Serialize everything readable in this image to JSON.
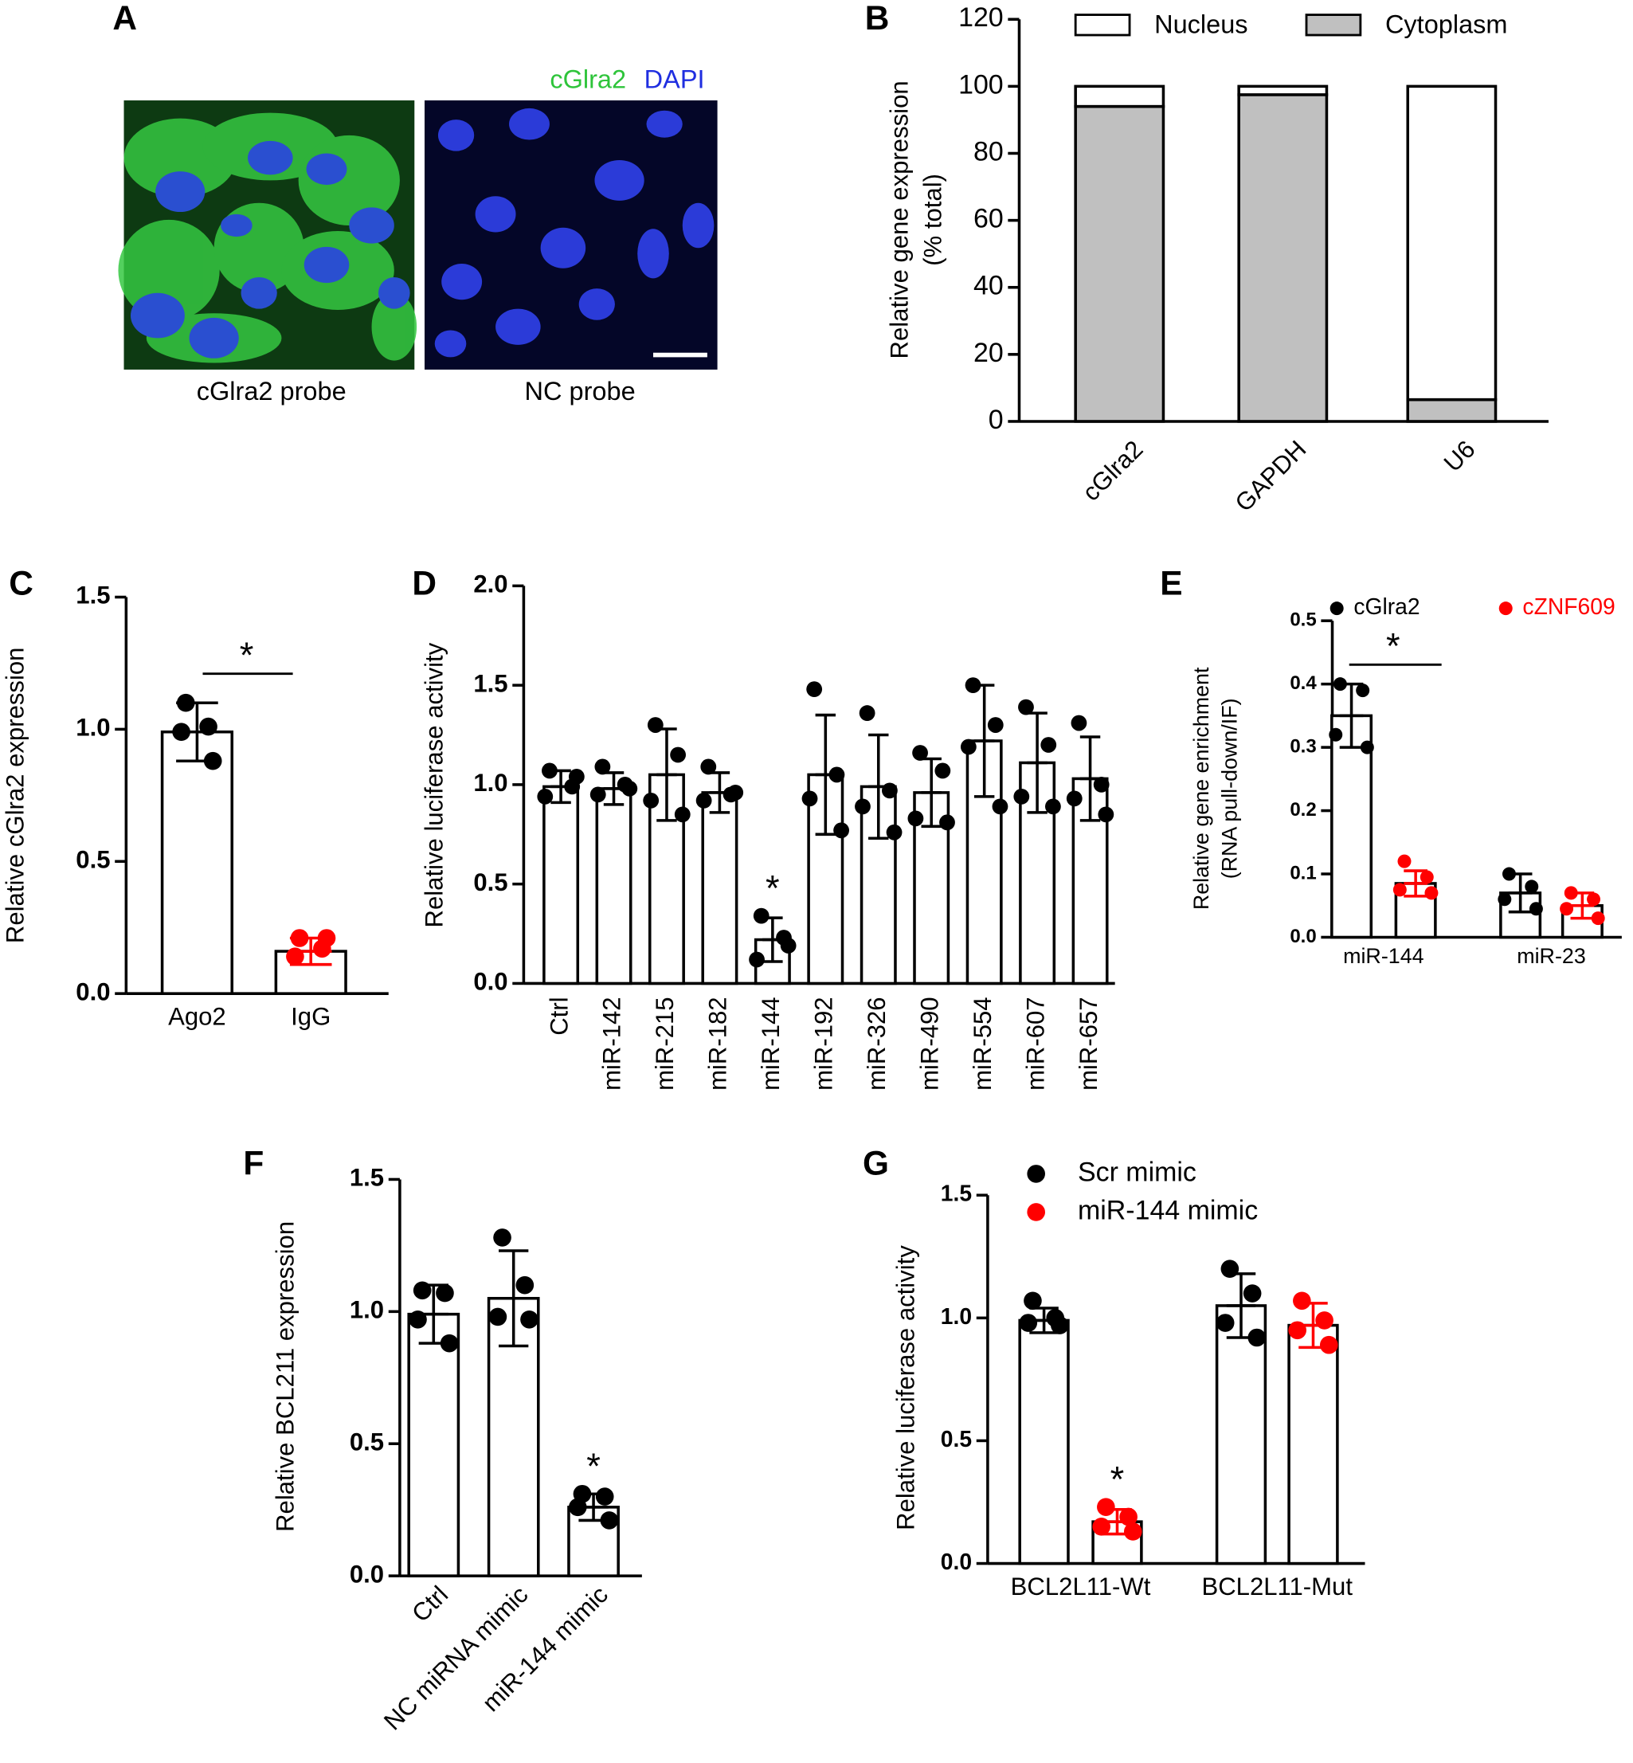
{
  "chart_data": [
    {
      "type": "image",
      "panel_label": "A",
      "legend": [
        "cGlra2",
        "DAPI"
      ],
      "captions": [
        "cGlra2 probe",
        "NC probe"
      ]
    },
    {
      "type": "bar",
      "stacked": true,
      "panel_label": "B",
      "y_label": [
        "Relative gene expression",
        "(% total)"
      ],
      "categories": [
        "cGlra2",
        "GAPDH",
        "U6"
      ],
      "series": [
        {
          "name": "Nucleus",
          "color": "#ffffff",
          "values": [
            6,
            2.5,
            93.5
          ]
        },
        {
          "name": "Cytoplasm",
          "color": "#c0c0c0",
          "values": [
            94,
            97.5,
            6.5
          ]
        }
      ],
      "ylim": [
        0,
        120
      ],
      "yticks": [
        0,
        20,
        40,
        60,
        80,
        100,
        120
      ]
    },
    {
      "type": "dot_bar",
      "panel_label": "C",
      "y_label": [
        "Relative cGlra2 expression"
      ],
      "annotation": "*",
      "categories": [
        "Ago2",
        "IgG"
      ],
      "series": [
        {
          "color": [
            "#000000",
            "#ff0000"
          ],
          "values": [
            0.99,
            0.16
          ],
          "errors": [
            0.11,
            0.05
          ],
          "points": [
            [
              1.1,
              1.01,
              0.99,
              0.88
            ],
            [
              0.21,
              0.17,
              0.14,
              0.21
            ]
          ]
        }
      ],
      "ylim": [
        0,
        1.5
      ],
      "yticks": [
        {
          "value": 0,
          "label": "0.0"
        },
        {
          "value": 0.5,
          "label": "0.5"
        },
        {
          "value": 1,
          "label": "1.0"
        },
        {
          "value": 1.5,
          "label": "1.5"
        }
      ]
    },
    {
      "type": "dot_bar",
      "panel_label": "D",
      "y_label": [
        "Relative luciferase activity"
      ],
      "annotation": "*",
      "categories": [
        "Ctrl",
        "miR-142",
        "miR-215",
        "miR-182",
        "miR-144",
        "miR-192",
        "miR-326",
        "miR-490",
        "miR-554",
        "miR-607",
        "miR-657"
      ],
      "series": [
        {
          "color": "#000000",
          "values": [
            0.99,
            0.98,
            1.05,
            0.96,
            0.22,
            1.05,
            0.99,
            0.96,
            1.22,
            1.11,
            1.03
          ],
          "errors": [
            0.08,
            0.08,
            0.23,
            0.1,
            0.11,
            0.3,
            0.26,
            0.17,
            0.28,
            0.25,
            0.21
          ],
          "points": [
            [
              1.07,
              0.99,
              0.94,
              1.04
            ],
            [
              1.09,
              1.0,
              0.95,
              0.98
            ],
            [
              1.3,
              1.15,
              0.92,
              0.85
            ],
            [
              1.09,
              0.95,
              0.92,
              0.96
            ],
            [
              0.34,
              0.23,
              0.12,
              0.19
            ],
            [
              1.48,
              1.05,
              0.93,
              0.77
            ],
            [
              1.36,
              0.97,
              0.89,
              0.76
            ],
            [
              1.16,
              1.07,
              0.83,
              0.81
            ],
            [
              1.5,
              1.3,
              1.19,
              0.89
            ],
            [
              1.39,
              1.2,
              0.94,
              0.89
            ],
            [
              1.31,
              1.0,
              0.93,
              0.85
            ]
          ]
        }
      ],
      "ylim": [
        0,
        2
      ],
      "yticks": [
        {
          "value": 0,
          "label": "0.0"
        },
        {
          "value": 0.5,
          "label": "0.5"
        },
        {
          "value": 1,
          "label": "1.0"
        },
        {
          "value": 1.5,
          "label": "1.5"
        },
        {
          "value": 2,
          "label": "2.0"
        }
      ]
    },
    {
      "type": "dot_bar",
      "panel_label": "E",
      "y_label": [
        "Relative gene enrichment",
        "(RNA pull-down/IF)"
      ],
      "annotation": "*",
      "categories": [
        "miR-144",
        "miR-23"
      ],
      "series": [
        {
          "name": "cGlra2",
          "color": "#000000",
          "values": [
            0.35,
            0.07
          ],
          "errors": [
            0.05,
            0.03
          ],
          "points": [
            [
              0.4,
              0.39,
              0.32,
              0.3
            ],
            [
              0.1,
              0.08,
              0.06,
              0.045
            ]
          ]
        },
        {
          "name": "cZNF609",
          "color": "#ff0000",
          "values": [
            0.085,
            0.05
          ],
          "errors": [
            0.02,
            0.02
          ],
          "points": [
            [
              0.12,
              0.095,
              0.075,
              0.07
            ],
            [
              0.07,
              0.06,
              0.045,
              0.03
            ]
          ]
        }
      ],
      "ylim": [
        0,
        0.5
      ],
      "yticks": [
        {
          "value": 0,
          "label": "0.0"
        },
        0.1,
        0.2,
        0.3,
        0.4,
        0.5
      ]
    },
    {
      "type": "dot_bar",
      "panel_label": "F",
      "y_label": [
        "Relative BCL211 expression"
      ],
      "annotation": "*",
      "categories": [
        "Ctrl",
        "NC miRNA mimic",
        "miR-144 mimic"
      ],
      "series": [
        {
          "color": "#000000",
          "values": [
            0.99,
            1.05,
            0.26
          ],
          "errors": [
            0.11,
            0.18,
            0.05
          ],
          "points": [
            [
              1.08,
              1.07,
              0.97,
              0.88
            ],
            [
              1.28,
              1.1,
              0.98,
              0.97
            ],
            [
              0.31,
              0.3,
              0.26,
              0.21
            ]
          ]
        }
      ],
      "ylim": [
        0,
        1.5
      ],
      "yticks": [
        {
          "value": 0,
          "label": "0.0"
        },
        {
          "value": 0.5,
          "label": "0.5"
        },
        {
          "value": 1,
          "label": "1.0"
        },
        {
          "value": 1.5,
          "label": "1.5"
        }
      ]
    },
    {
      "type": "dot_bar",
      "panel_label": "G",
      "y_label": [
        "Relative luciferase activity"
      ],
      "annotation": "*",
      "categories": [
        "BCL2L11-Wt",
        "BCL2L11-Mut"
      ],
      "series": [
        {
          "name": "Scr mimic",
          "color": "#000000",
          "values": [
            0.99,
            1.05
          ],
          "errors": [
            0.05,
            0.13
          ],
          "points": [
            [
              1.07,
              1.0,
              0.98,
              0.97
            ],
            [
              1.2,
              1.1,
              0.98,
              0.92
            ]
          ]
        },
        {
          "name": "miR-144 mimic",
          "color": "#ff0000",
          "values": [
            0.17,
            0.97
          ],
          "errors": [
            0.05,
            0.09
          ],
          "points": [
            [
              0.23,
              0.19,
              0.15,
              0.13
            ],
            [
              1.07,
              0.99,
              0.95,
              0.89
            ]
          ]
        }
      ],
      "ylim": [
        0,
        1.5
      ],
      "yticks": [
        {
          "value": 0,
          "label": "0.0"
        },
        {
          "value": 0.5,
          "label": "0.5"
        },
        {
          "value": 1,
          "label": "1.0"
        },
        {
          "value": 1.5,
          "label": "1.5"
        }
      ]
    }
  ]
}
